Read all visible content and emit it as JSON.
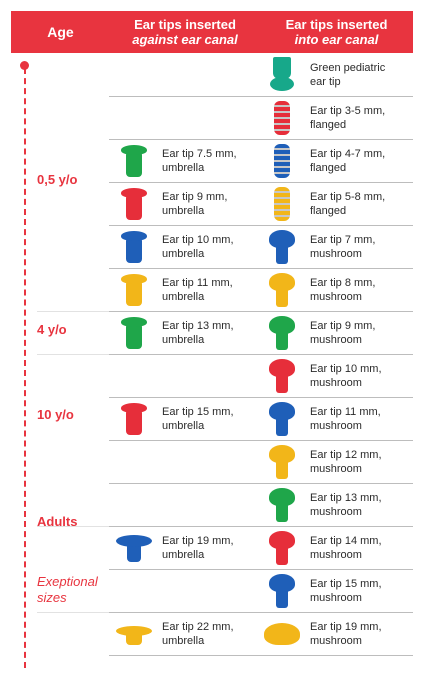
{
  "header": {
    "age": "Age",
    "against_line1": "Ear tips inserted",
    "against_line2": "against ear canal",
    "into_line1": "Ear tips inserted",
    "into_line2": "into ear canal"
  },
  "ages": [
    {
      "label": "0,5 y/o",
      "style": "bold"
    },
    {
      "label": "4 y/o",
      "style": "bold"
    },
    {
      "label": "10 y/o",
      "style": "bold"
    },
    {
      "label": "Adults",
      "style": "bold"
    },
    {
      "label": "Exeptional sizes",
      "style": "italic"
    }
  ],
  "against": [
    {
      "row": 2,
      "line1": "Ear tip 7.5 mm,",
      "line2": "umbrella",
      "color": "#1fa64a",
      "shape": "umbrella",
      "icon": "green-umbrella-ear-tip-icon"
    },
    {
      "row": 3,
      "line1": "Ear tip 9 mm,",
      "line2": "umbrella",
      "color": "#e62e3a",
      "shape": "umbrella",
      "icon": "red-umbrella-ear-tip-icon"
    },
    {
      "row": 4,
      "line1": "Ear tip 10 mm,",
      "line2": "umbrella",
      "color": "#1f5fb8",
      "shape": "umbrella",
      "icon": "blue-umbrella-ear-tip-icon"
    },
    {
      "row": 5,
      "line1": "Ear tip 11 mm,",
      "line2": "umbrella",
      "color": "#f2b619",
      "shape": "umbrella",
      "icon": "yellow-umbrella-ear-tip-icon"
    },
    {
      "row": 6,
      "line1": "Ear tip 13 mm,",
      "line2": "umbrella",
      "color": "#1fa64a",
      "shape": "umbrella",
      "icon": "green-umbrella-ear-tip-icon"
    },
    {
      "row": 8,
      "line1": "Ear tip 15 mm,",
      "line2": "umbrella",
      "color": "#e62e3a",
      "shape": "umbrella",
      "icon": "red-umbrella-ear-tip-icon"
    },
    {
      "row": 11,
      "line1": "Ear tip 19 mm,",
      "line2": "umbrella",
      "color": "#1f5fb8",
      "shape": "wide-umbrella",
      "icon": "blue-wide-umbrella-ear-tip-icon"
    },
    {
      "row": 13,
      "line1": "Ear tip 22 mm,",
      "line2": "umbrella",
      "color": "#f2b619",
      "shape": "exceptional-umbrella",
      "icon": "yellow-wide-umbrella-ear-tip-icon"
    }
  ],
  "into": [
    {
      "row": 0,
      "line1": "Green pediatric",
      "line2": "ear tip",
      "color": "#17a88a",
      "shape": "pediatric",
      "icon": "green-pediatric-ear-tip-icon"
    },
    {
      "row": 1,
      "line1": "Ear tip 3-5 mm,",
      "line2": "flanged",
      "color": "#e62e3a",
      "shape": "flanged",
      "icon": "red-flanged-ear-tip-icon"
    },
    {
      "row": 2,
      "line1": "Ear tip 4-7 mm,",
      "line2": "flanged",
      "color": "#1f5fb8",
      "shape": "flanged",
      "icon": "blue-flanged-ear-tip-icon"
    },
    {
      "row": 3,
      "line1": "Ear tip 5-8 mm,",
      "line2": "flanged",
      "color": "#f2b619",
      "shape": "flanged",
      "icon": "yellow-flanged-ear-tip-icon"
    },
    {
      "row": 4,
      "line1": "Ear tip 7 mm,",
      "line2": "mushroom",
      "color": "#1f5fb8",
      "shape": "mushroom",
      "icon": "blue-mushroom-ear-tip-icon"
    },
    {
      "row": 5,
      "line1": "Ear tip 8 mm,",
      "line2": "mushroom",
      "color": "#f2b619",
      "shape": "mushroom",
      "icon": "yellow-mushroom-ear-tip-icon"
    },
    {
      "row": 6,
      "line1": "Ear tip 9 mm,",
      "line2": "mushroom",
      "color": "#1fa64a",
      "shape": "mushroom",
      "icon": "green-mushroom-ear-tip-icon"
    },
    {
      "row": 7,
      "line1": "Ear tip 10 mm,",
      "line2": "mushroom",
      "color": "#e62e3a",
      "shape": "mushroom",
      "icon": "red-mushroom-ear-tip-icon"
    },
    {
      "row": 8,
      "line1": "Ear tip 11 mm,",
      "line2": "mushroom",
      "color": "#1f5fb8",
      "shape": "mushroom",
      "icon": "blue-mushroom-ear-tip-icon"
    },
    {
      "row": 9,
      "line1": "Ear tip 12 mm,",
      "line2": "mushroom",
      "color": "#f2b619",
      "shape": "mushroom",
      "icon": "yellow-mushroom-ear-tip-icon"
    },
    {
      "row": 10,
      "line1": "Ear tip 13 mm,",
      "line2": "mushroom",
      "color": "#1fa64a",
      "shape": "mushroom",
      "icon": "green-mushroom-ear-tip-icon"
    },
    {
      "row": 11,
      "line1": "Ear tip 14 mm,",
      "line2": "mushroom",
      "color": "#e62e3a",
      "shape": "mushroom",
      "icon": "red-mushroom-ear-tip-icon"
    },
    {
      "row": 12,
      "line1": "Ear tip 15 mm,",
      "line2": "mushroom",
      "color": "#1f5fb8",
      "shape": "mushroom",
      "icon": "blue-mushroom-ear-tip-icon"
    },
    {
      "row": 13,
      "line1": "Ear tip 19 mm,",
      "line2": "mushroom",
      "color": "#f2b619",
      "shape": "dome",
      "icon": "yellow-dome-ear-tip-icon"
    }
  ],
  "colors": {
    "accent": "#e8343f",
    "separator": "#bdbdbd"
  }
}
